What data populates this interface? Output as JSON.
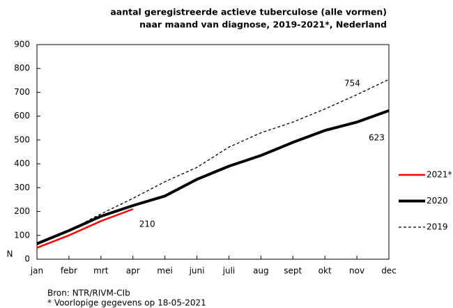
{
  "chart_data": {
    "type": "line",
    "title": [
      "aantal geregistreerde actieve tuberculose (alle vormen)",
      "naar maand van diagnose, 2019-2021*, Nederland"
    ],
    "ylabel": "N",
    "categories": [
      "jan",
      "febr",
      "mrt",
      "apr",
      "mei",
      "juni",
      "juli",
      "aug",
      "sept",
      "okt",
      "nov",
      "dec"
    ],
    "series": [
      {
        "name": "2021*",
        "color": "#ff0000",
        "line_style": "solid",
        "values": [
          48,
          100,
          160,
          210,
          null,
          null,
          null,
          null,
          null,
          null,
          null,
          null
        ]
      },
      {
        "name": "2020",
        "color": "#000000",
        "line_style": "thick",
        "values": [
          65,
          120,
          180,
          225,
          265,
          335,
          390,
          435,
          490,
          540,
          575,
          623
        ]
      },
      {
        "name": "2019",
        "color": "#000000",
        "line_style": "dashed",
        "values": [
          60,
          120,
          190,
          255,
          325,
          385,
          470,
          530,
          575,
          630,
          690,
          754
        ]
      }
    ],
    "ylim": [
      0,
      900
    ],
    "yticks": [
      0,
      100,
      200,
      300,
      400,
      500,
      600,
      700,
      800,
      900
    ],
    "grid": false,
    "legend": "right",
    "notes": [
      "Bron: NTR/RIVM-CIb",
      "* Voorlopige gegevens op 18-05-2021"
    ]
  }
}
